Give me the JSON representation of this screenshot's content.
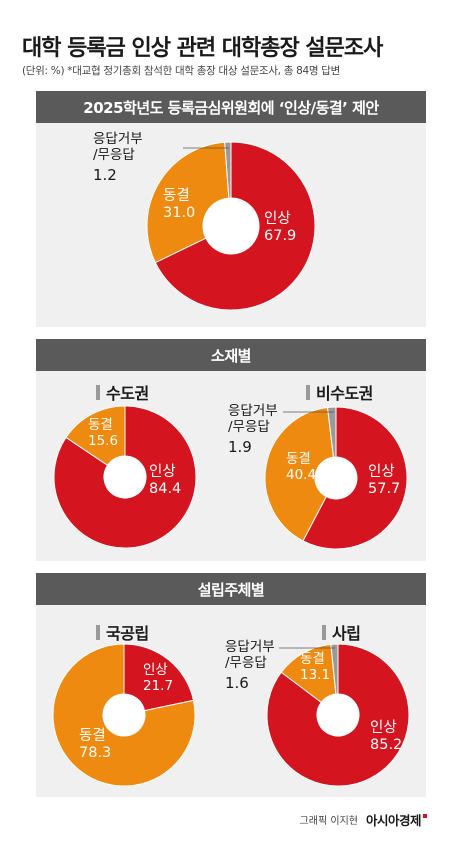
{
  "title": "대학 등록금 인상 관련 대학총장 설문조사",
  "note": "(단위: %) *대교협 정기총회 참석한 대학 총장 대상 설문조사, 총 84명 답변",
  "colors": {
    "raise": "#d4141e",
    "freeze": "#ef8a10",
    "refuse": "#9a9a9a",
    "header": "#5a5a5a",
    "panel": "#f0f0f0"
  },
  "panels": [
    {
      "header": "2025학년도 등록금심위원회에 ‘인상/동결’ 제안"
    },
    {
      "header": "소재별"
    },
    {
      "header": "설립주체별"
    }
  ],
  "chart_data": [
    {
      "type": "pie",
      "title": "2025학년도 등록금심위원회에 ‘인상/동결’ 제안",
      "categories": [
        "인상",
        "동결",
        "응답거부/무응답"
      ],
      "values": [
        67.9,
        31.0,
        1.2
      ],
      "value_labels": [
        "67.9",
        "31.0",
        "1.2"
      ],
      "category_labels": [
        "인상",
        "동결",
        "응답거부\n/무응답"
      ]
    },
    {
      "type": "pie",
      "title": "수도권",
      "categories": [
        "인상",
        "동결"
      ],
      "values": [
        84.4,
        15.6
      ],
      "value_labels": [
        "84.4",
        "15.6"
      ],
      "category_labels": [
        "인상",
        "동결"
      ]
    },
    {
      "type": "pie",
      "title": "비수도권",
      "categories": [
        "인상",
        "동결",
        "응답거부/무응답"
      ],
      "values": [
        57.7,
        40.4,
        1.9
      ],
      "value_labels": [
        "57.7",
        "40.4",
        "1.9"
      ],
      "category_labels": [
        "인상",
        "동결",
        "응답거부\n/무응답"
      ]
    },
    {
      "type": "pie",
      "title": "국공립",
      "categories": [
        "인상",
        "동결"
      ],
      "values": [
        21.7,
        78.3
      ],
      "value_labels": [
        "21.7",
        "78.3"
      ],
      "category_labels": [
        "인상",
        "동결"
      ]
    },
    {
      "type": "pie",
      "title": "사립",
      "categories": [
        "인상",
        "동결",
        "응답거부/무응답"
      ],
      "values": [
        85.2,
        13.1,
        1.6
      ],
      "value_labels": [
        "85.2",
        "13.1",
        "1.6"
      ],
      "category_labels": [
        "인상",
        "동결",
        "응답거부\n/무응답"
      ]
    }
  ],
  "credit": {
    "graphic": "그래픽 이지현",
    "brand": "아시아경제"
  }
}
